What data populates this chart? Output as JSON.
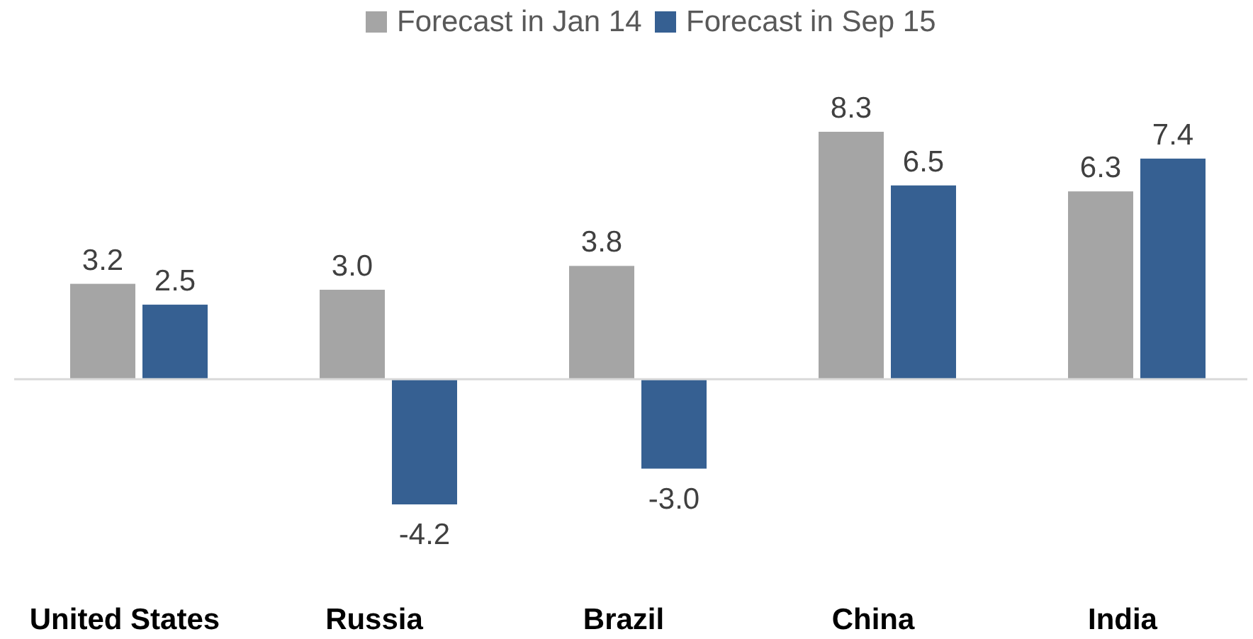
{
  "chart_data": {
    "type": "bar",
    "categories": [
      "United States",
      "Russia",
      "Brazil",
      "China",
      "India"
    ],
    "series": [
      {
        "name": "Forecast in Jan 14",
        "color": "#a5a5a5",
        "values": [
          3.2,
          3.0,
          3.8,
          8.3,
          6.3
        ],
        "value_labels": [
          "3.2",
          "3.0",
          "3.8",
          "8.3",
          "6.3"
        ]
      },
      {
        "name": "Forecast in Sep 15",
        "color": "#366092",
        "values": [
          2.5,
          -4.2,
          -3.0,
          6.5,
          7.4
        ],
        "value_labels": [
          "2.5",
          "-4.2",
          "-3.0",
          "6.5",
          "7.4"
        ]
      }
    ],
    "legend": "top"
  }
}
